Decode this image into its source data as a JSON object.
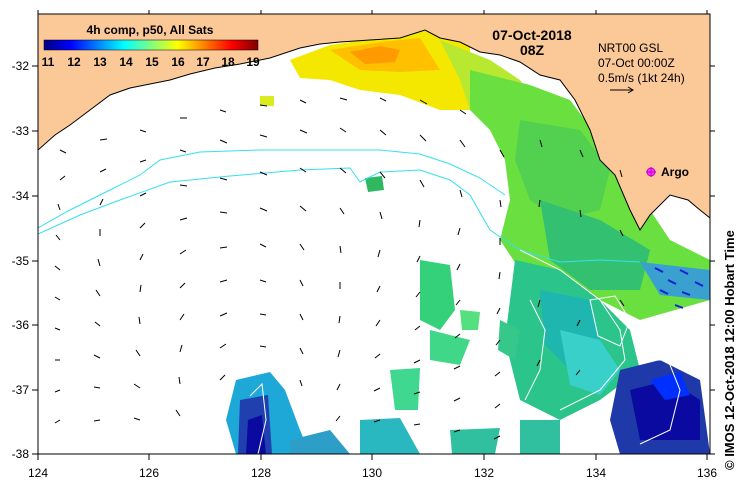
{
  "map": {
    "title_left": "4h comp, p50, All Sats",
    "date": "07-Oct-2018",
    "time": "08Z",
    "model_label": "NRT00 GSL",
    "model_time": "07-Oct 00:00Z",
    "vector_scale": "0.5m/s (1kt 24h)",
    "argo_label": "Argo",
    "credit": "© IMOS 12-Oct-2018 12:00 Hobart Time"
  },
  "axes": {
    "x_ticks": [
      "124",
      "126",
      "128",
      "130",
      "132",
      "134",
      "136"
    ],
    "y_ticks": [
      "-32",
      "-33",
      "-34",
      "-35",
      "-36",
      "-37",
      "-38"
    ]
  },
  "colorbar": {
    "labels": [
      "11",
      "12",
      "13",
      "14",
      "15",
      "16",
      "17",
      "18",
      "19"
    ],
    "min": 11,
    "max": 19,
    "stops": [
      "#00007f",
      "#0000ff",
      "#0080ff",
      "#00ffff",
      "#80ff80",
      "#ffff00",
      "#ff8000",
      "#ff0000",
      "#7f0000"
    ]
  },
  "colors": {
    "land": "#fbc898",
    "ocean_bg": "#ffffff",
    "contour_cyan": "#33e0ee",
    "argo": "#ff33ff"
  }
}
